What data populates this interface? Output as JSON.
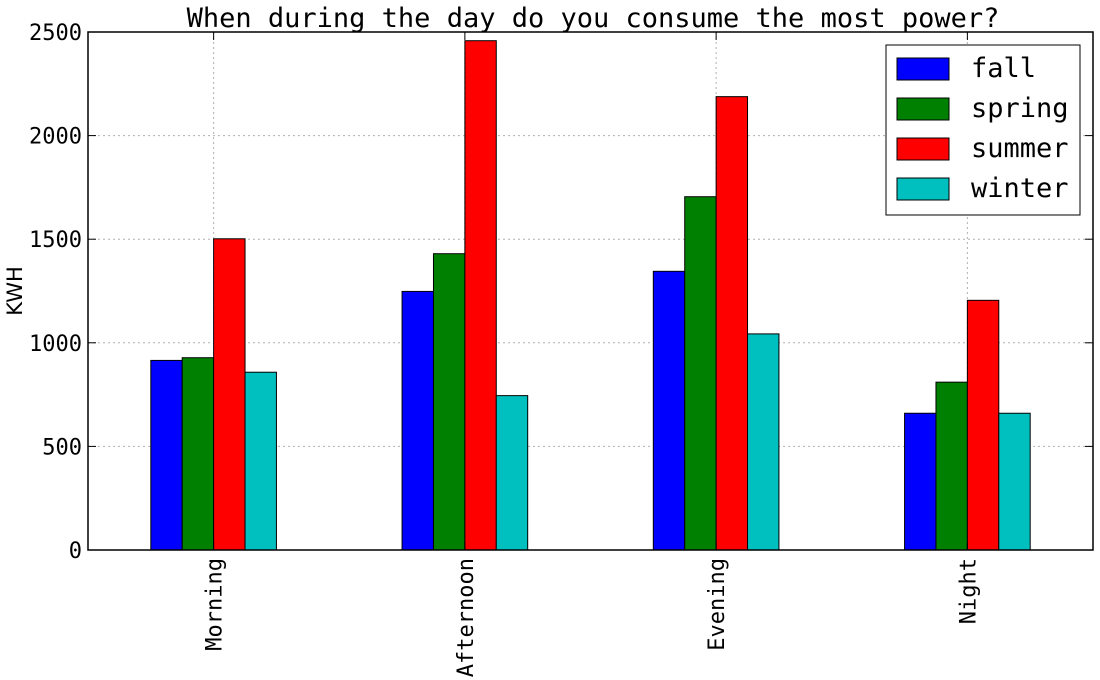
{
  "chart_data": {
    "type": "bar",
    "title": "When during the day do you consume the most power?",
    "xlabel": "",
    "ylabel": "KWH",
    "categories": [
      "Morning",
      "Afternoon",
      "Evening",
      "Night"
    ],
    "ylim": [
      0,
      2500
    ],
    "yticks": [
      "0",
      "500",
      "1000",
      "1500",
      "2000",
      "2500"
    ],
    "grid": true,
    "legend_position": "top-right",
    "series": [
      {
        "name": "fall",
        "color": "#0000ff",
        "values": [
          915,
          1248,
          1345,
          660
        ]
      },
      {
        "name": "spring",
        "color": "#008000",
        "values": [
          928,
          1430,
          1705,
          810
        ]
      },
      {
        "name": "summer",
        "color": "#ff0000",
        "values": [
          1502,
          2458,
          2188,
          1205
        ]
      },
      {
        "name": "winter",
        "color": "#00bfbf",
        "values": [
          858,
          745,
          1043,
          660
        ]
      }
    ]
  }
}
